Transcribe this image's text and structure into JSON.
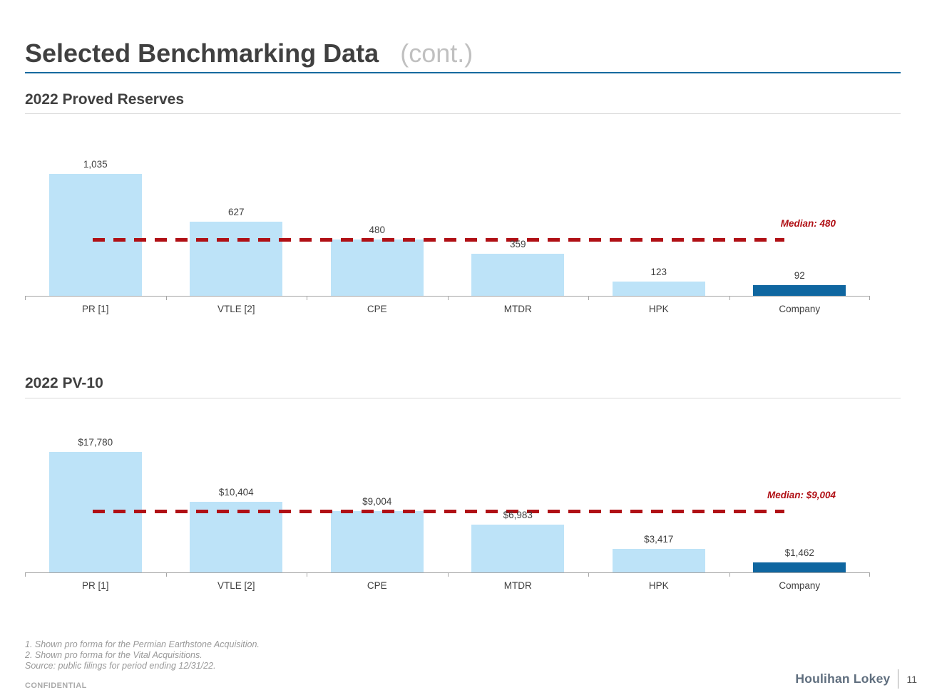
{
  "header": {
    "title_main": "Selected Benchmarking Data",
    "title_suffix": "(cont.)"
  },
  "sections": [
    {
      "heading": "2022 Proved Reserves"
    },
    {
      "heading": "2022 PV-10"
    }
  ],
  "chart_data": [
    {
      "type": "bar",
      "title": "2022 Proved Reserves",
      "categories": [
        "PR [1]",
        "VTLE [2]",
        "CPE",
        "MTDR",
        "HPK",
        "Company"
      ],
      "values": [
        1035,
        627,
        480,
        359,
        123,
        92
      ],
      "value_labels": [
        "1,035",
        "627",
        "480",
        "359",
        "123",
        "92"
      ],
      "median": 480,
      "median_label": "Median: 480",
      "ylim": [
        0,
        1300
      ],
      "highlight_last": true,
      "grid": false,
      "legend": "none"
    },
    {
      "type": "bar",
      "title": "2022 PV-10",
      "categories": [
        "PR [1]",
        "VTLE [2]",
        "CPE",
        "MTDR",
        "HPK",
        "Company"
      ],
      "values": [
        17780,
        10404,
        9004,
        6983,
        3417,
        1462
      ],
      "value_labels": [
        "$17,780",
        "$10,404",
        "$9,004",
        "$6,983",
        "$3,417",
        "$1,462"
      ],
      "median": 9004,
      "median_label": "Median: $9,004",
      "ylim": [
        0,
        21300
      ],
      "highlight_last": true,
      "grid": false,
      "legend": "none"
    }
  ],
  "colors": {
    "bar": "#bde3f8",
    "bar_highlight": "#0f66a0",
    "median": "#b01015",
    "accent_rule": "#16699f"
  },
  "footnotes": [
    "1. Shown pro forma for the Permian Earthstone Acquisition.",
    "2. Shown pro forma for the Vital Acquisitions.",
    "Source: public filings for period ending 12/31/22."
  ],
  "footer": {
    "confidential": "CONFIDENTIAL",
    "brand": "Houlihan Lokey",
    "page_number": "11"
  }
}
